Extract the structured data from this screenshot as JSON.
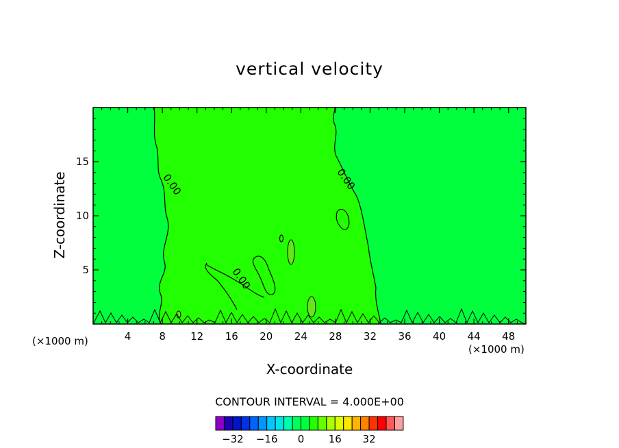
{
  "chart_data": {
    "type": "contour",
    "title": "vertical velocity",
    "xlabel": "X-coordinate",
    "ylabel": "Z-coordinate",
    "x_unit_left": "(×1000 m)",
    "x_unit_right": "(×1000 m)",
    "xlim": [
      0,
      50
    ],
    "ylim": [
      0,
      20
    ],
    "x_ticks": [
      4,
      8,
      12,
      16,
      20,
      24,
      28,
      32,
      36,
      40,
      44,
      48
    ],
    "y_ticks": [
      5,
      10,
      15
    ],
    "contour_interval_text": "CONTOUR INTERVAL = 4.000E+00",
    "contour_labels": [
      {
        "text": "0.00",
        "x": 8.8,
        "y": 12.7
      },
      {
        "text": "0.00",
        "x": 28.9,
        "y": 13.2
      },
      {
        "text": "0.00",
        "x": 16.8,
        "y": 4.0
      }
    ],
    "fields": {
      "background_color": "#00ff3c",
      "central_region_color": "#22ff00",
      "updraft_color": "#66e61a"
    },
    "colorbar": {
      "colors": [
        "#8c00c8",
        "#1e00b4",
        "#0014c8",
        "#0032e6",
        "#0064ff",
        "#0096ff",
        "#00c8ff",
        "#00e6e6",
        "#00ffaa",
        "#00ff5a",
        "#00ff3c",
        "#22ff00",
        "#66ff00",
        "#aaff00",
        "#dcff00",
        "#ffe600",
        "#ffb400",
        "#ff8200",
        "#ff3200",
        "#ff0000",
        "#ff5a5a",
        "#ffa0a0"
      ],
      "tick_labels": [
        {
          "text": "−32",
          "after_box": 2
        },
        {
          "text": "−16",
          "after_box": 6
        },
        {
          "text": "0",
          "after_box": 10
        },
        {
          "text": "16",
          "after_box": 14
        },
        {
          "text": "32",
          "after_box": 18
        }
      ]
    }
  }
}
